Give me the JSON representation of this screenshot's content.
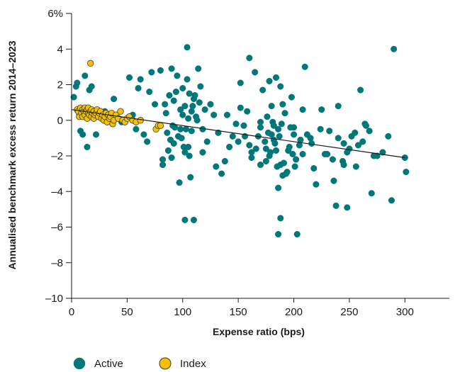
{
  "chart_data": {
    "type": "scatter",
    "title": "",
    "xlabel": "Expense ratio (bps)",
    "ylabel": "Annualised benchmark excess return 2014–2023",
    "xlim": [
      0,
      340
    ],
    "ylim": [
      -10,
      6
    ],
    "x_ticks": [
      0,
      50,
      100,
      150,
      200,
      250,
      300
    ],
    "y_ticks": [
      -10,
      -8,
      -6,
      -4,
      -2,
      0,
      2,
      4,
      6
    ],
    "y_tick_labels": [
      "–10",
      "–8",
      "–6",
      "–4",
      "–2",
      "0",
      "2",
      "4",
      "6%"
    ],
    "grid": false,
    "legend_position": "bottom-left",
    "series": [
      {
        "name": "Active",
        "color": "#00787a",
        "x": [
          2,
          4,
          5,
          7,
          8,
          10,
          12,
          14,
          16,
          18,
          20,
          22,
          30,
          35,
          38,
          40,
          45,
          52,
          55,
          58,
          60,
          62,
          65,
          68,
          70,
          72,
          75,
          78,
          80,
          82,
          85,
          88,
          90,
          92,
          95,
          98,
          100,
          102,
          104,
          106,
          108,
          110,
          112,
          114,
          116,
          118,
          120,
          125,
          130,
          135,
          140,
          145,
          150,
          152,
          155,
          158,
          160,
          162,
          165,
          168,
          170,
          172,
          175,
          178,
          180,
          182,
          184,
          186,
          188,
          190,
          192,
          195,
          198,
          200,
          205,
          210,
          215,
          220,
          225,
          230,
          235,
          238,
          240,
          245,
          248,
          250,
          255,
          260,
          262,
          265,
          270,
          275,
          280,
          285,
          288,
          300,
          301,
          98,
          102,
          105,
          108,
          104,
          100,
          96,
          94,
          92,
          90,
          86,
          84,
          82,
          115,
          118,
          122,
          128,
          132,
          138,
          142,
          148,
          152,
          156,
          162,
          166,
          170,
          174,
          176,
          178,
          180,
          182,
          184,
          186,
          188,
          190,
          194,
          196,
          200,
          202,
          206,
          208,
          212,
          216,
          218,
          224,
          228,
          232,
          236,
          240,
          244,
          248,
          252,
          256,
          258,
          264,
          268,
          272,
          105,
          107,
          110,
          97,
          93,
          89,
          87,
          91,
          99,
          101,
          103,
          109,
          111,
          113,
          185,
          187,
          183,
          181,
          179,
          177,
          175,
          189,
          191,
          193,
          197,
          199,
          201,
          203,
          186,
          188,
          102,
          106,
          160,
          170,
          208,
          245,
          290
        ],
        "y": [
          1.3,
          1.9,
          2.1,
          0.3,
          -0.6,
          -0.8,
          2.5,
          -1.5,
          1.7,
          1.9,
          0.2,
          -0.8,
          0.5,
          0.2,
          1.2,
          0.1,
          -0.1,
          2.4,
          0.3,
          -0.5,
          1.8,
          2.3,
          -0.8,
          -1.2,
          1.6,
          2.7,
          0.9,
          -0.3,
          2.8,
          -2.2,
          0.4,
          1.4,
          2.9,
          1.1,
          2.5,
          0.6,
          1.8,
          0.8,
          2.3,
          1.5,
          -0.6,
          1.2,
          0.2,
          2.9,
          1.9,
          -0.5,
          0.6,
          0.9,
          -2.6,
          -3.0,
          0.3,
          -0.9,
          -1.2,
          2.1,
          -0.3,
          0.5,
          3.5,
          -1.8,
          2.7,
          -0.9,
          -0.1,
          1.7,
          -2.3,
          2.2,
          0.8,
          -1.1,
          2.4,
          -0.5,
          1.9,
          -3.1,
          0.4,
          -1.7,
          1.3,
          -0.8,
          -1.4,
          3.0,
          -1.0,
          -3.6,
          0.6,
          -1.9,
          -2.2,
          -4.8,
          0.8,
          -1.3,
          -4.9,
          -1.6,
          -0.7,
          1.7,
          -1.2,
          -0.3,
          -4.1,
          -2.0,
          -1.8,
          -0.9,
          -4.5,
          -2.1,
          -2.9,
          -0.5,
          -1.8,
          0.1,
          0.5,
          4.1,
          0.3,
          -0.9,
          1.6,
          -1.3,
          -2.1,
          -0.7,
          0.9,
          -2.5,
          1.0,
          -1.8,
          -1.2,
          0.3,
          -0.7,
          -2.3,
          -1.5,
          -0.2,
          0.7,
          -0.9,
          -2.1,
          -1.6,
          -0.4,
          -1.2,
          0.2,
          -2.0,
          -0.8,
          -0.3,
          -1.7,
          -3.8,
          -2.5,
          0.9,
          -2.9,
          -1.5,
          -0.4,
          -2.2,
          -1.1,
          0.6,
          -0.8,
          -1.3,
          -2.7,
          -0.5,
          -1.9,
          -0.6,
          -3.4,
          -1.0,
          -2.3,
          -1.8,
          -0.9,
          -2.6,
          -1.4,
          -0.2,
          -0.6,
          -2.0,
          -1.5,
          -3.2,
          -5.6,
          -3.5,
          -0.4,
          -1.1,
          -1.7,
          -0.3,
          -1.0,
          -1.5,
          -0.5,
          0.8,
          1.4,
          0.0,
          -2.6,
          -0.9,
          -1.3,
          -0.1,
          -1.8,
          -0.7,
          -1.6,
          -0.2,
          -2.4,
          -3.0,
          -0.4,
          -1.9,
          -2.6,
          -6.4,
          -6.4,
          -5.5,
          -5.6,
          -2.0,
          -1.4,
          -2.5,
          -1.9,
          -2.5,
          4.0
        ]
      },
      {
        "name": "Index",
        "color": "#f5c000",
        "x": [
          5,
          6,
          7,
          8,
          9,
          10,
          10,
          11,
          12,
          12,
          13,
          14,
          14,
          15,
          15,
          16,
          17,
          18,
          18,
          19,
          20,
          20,
          21,
          22,
          23,
          24,
          25,
          26,
          27,
          28,
          29,
          30,
          31,
          32,
          33,
          34,
          35,
          36,
          37,
          38,
          40,
          42,
          44,
          46,
          48,
          50,
          52,
          55,
          58,
          62,
          76,
          78,
          80,
          17
        ],
        "y": [
          0.6,
          0.5,
          0.2,
          0.7,
          0.4,
          0.6,
          0.2,
          0.5,
          0.7,
          0.3,
          0.5,
          0.6,
          0.1,
          0.4,
          0.7,
          0.3,
          0.5,
          0.6,
          0.2,
          0.4,
          0.5,
          0.1,
          0.3,
          0.4,
          0.6,
          0.2,
          0.4,
          0.5,
          0.1,
          0.3,
          0.0,
          0.2,
          0.4,
          -0.1,
          0.3,
          0.1,
          0.2,
          0.4,
          -0.2,
          0.0,
          0.3,
          0.1,
          0.5,
          0.0,
          -0.1,
          0.1,
          0.2,
          0.0,
          -0.1,
          0.0,
          -0.5,
          -0.3,
          -0.3,
          3.2
        ]
      }
    ],
    "trend_line": {
      "x": [
        0,
        300
      ],
      "y": [
        0.6,
        -2.1
      ]
    }
  }
}
